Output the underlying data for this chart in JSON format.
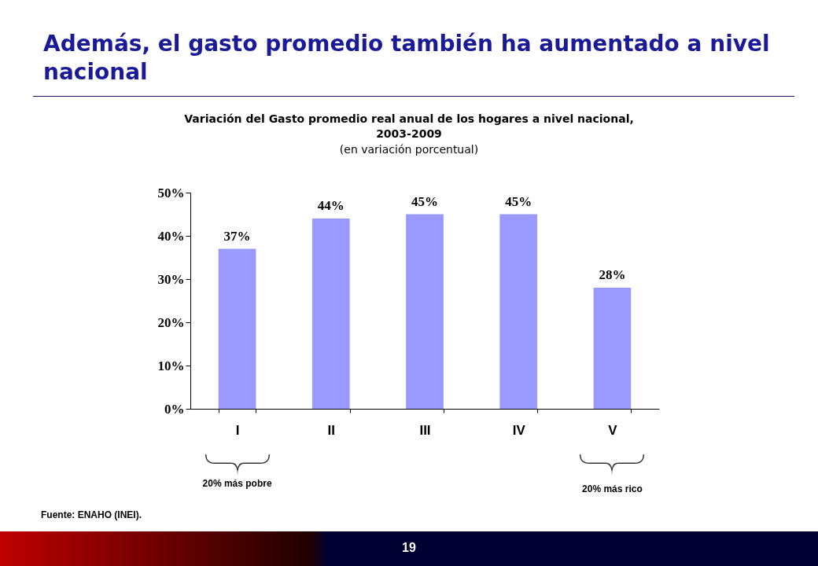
{
  "chart_data": {
    "type": "bar",
    "title": "Además, el gasto promedio también ha aumentado a nivel nacional",
    "subtitle": "Variación del Gasto promedio real anual de los hogares a nivel nacional, 2003-2009",
    "categories": [
      "I",
      "II",
      "III",
      "IV",
      "V"
    ],
    "values": [
      37,
      44,
      45,
      45,
      28
    ],
    "color": "#9999ff",
    "value_labels": [
      "37%",
      "44%",
      "45%",
      "45%",
      "28%"
    ],
    "ylim": [
      0,
      50
    ],
    "yticks": [
      {
        "value": 0,
        "label": "0%"
      },
      {
        "value": 10,
        "label": "10%"
      },
      {
        "value": 20,
        "label": "20%"
      },
      {
        "value": 30,
        "label": "30%"
      },
      {
        "value": 40,
        "label": "40%"
      },
      {
        "value": 50,
        "label": "50%"
      }
    ],
    "grid": false,
    "annotations": [
      "(en variación porcentual)",
      "Fuente: ENAHO (INEI).",
      "19",
      "20% más pobre",
      "20% más rico"
    ]
  }
}
